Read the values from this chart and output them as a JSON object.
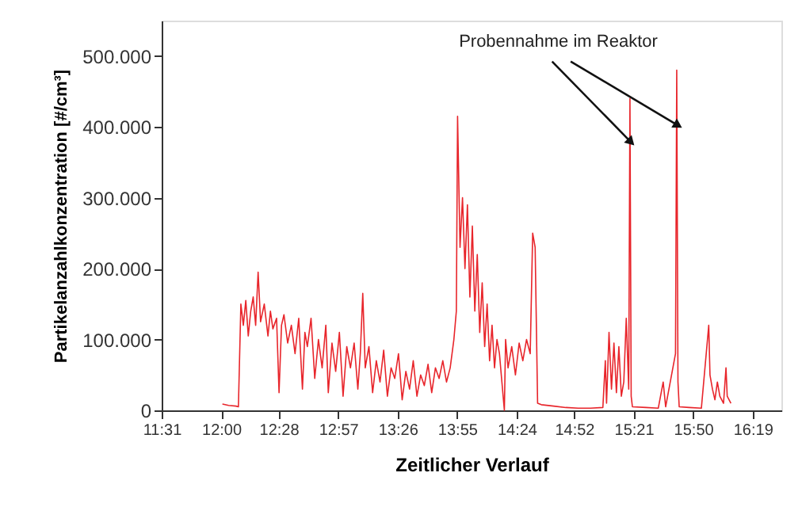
{
  "chart_data": {
    "type": "line",
    "xlabel": "Zeitlicher Verlauf",
    "ylabel": "Partikelanzahlkonzentration [#/cm³]",
    "annotations": [
      {
        "text": "Probennahme im Reaktor",
        "x": 15.32,
        "y": 380000
      }
    ],
    "xlim": [
      11.5167,
      16.55
    ],
    "ylim": [
      0,
      550000
    ],
    "xticks": [
      {
        "value": 11.5167,
        "label": "11:31"
      },
      {
        "value": 12.0,
        "label": "12:00"
      },
      {
        "value": 12.4667,
        "label": "12:28"
      },
      {
        "value": 12.95,
        "label": "12:57"
      },
      {
        "value": 13.4333,
        "label": "13:26"
      },
      {
        "value": 13.9167,
        "label": "13:55"
      },
      {
        "value": 14.4,
        "label": "14:24"
      },
      {
        "value": 14.8667,
        "label": "14:52"
      },
      {
        "value": 15.35,
        "label": "15:21"
      },
      {
        "value": 15.8333,
        "label": "15:50"
      },
      {
        "value": 16.3167,
        "label": "16:19"
      }
    ],
    "yticks": [
      {
        "value": 0,
        "label": "0"
      },
      {
        "value": 100000,
        "label": "100.000"
      },
      {
        "value": 200000,
        "label": "200.000"
      },
      {
        "value": 300000,
        "label": "300.000"
      },
      {
        "value": 400000,
        "label": "400.000"
      },
      {
        "value": 500000,
        "label": "500.000"
      }
    ],
    "grid": false,
    "marker": "none",
    "line_style": "solid",
    "series": [
      {
        "color": "#e8252b",
        "x": [
          12.01,
          12.06,
          12.12,
          12.14,
          12.16,
          12.18,
          12.2,
          12.22,
          12.24,
          12.26,
          12.28,
          12.3,
          12.32,
          12.35,
          12.38,
          12.4,
          12.42,
          12.45,
          12.47,
          12.49,
          12.51,
          12.54,
          12.57,
          12.6,
          12.63,
          12.66,
          12.68,
          12.7,
          12.73,
          12.76,
          12.79,
          12.82,
          12.85,
          12.87,
          12.9,
          12.93,
          12.96,
          12.99,
          13.02,
          13.05,
          13.08,
          13.11,
          13.13,
          13.15,
          13.17,
          13.2,
          13.23,
          13.26,
          13.29,
          13.32,
          13.35,
          13.38,
          13.41,
          13.44,
          13.47,
          13.5,
          13.53,
          13.56,
          13.59,
          13.62,
          13.65,
          13.68,
          13.71,
          13.74,
          13.77,
          13.8,
          13.83,
          13.86,
          13.89,
          13.91,
          13.92,
          13.94,
          13.96,
          13.98,
          14.0,
          14.02,
          14.04,
          14.06,
          14.08,
          14.1,
          14.12,
          14.14,
          14.16,
          14.18,
          14.2,
          14.22,
          14.24,
          14.26,
          14.28,
          14.3,
          14.31,
          14.33,
          14.36,
          14.39,
          14.42,
          14.45,
          14.48,
          14.51,
          14.53,
          14.55,
          14.57,
          14.6,
          14.7,
          14.8,
          14.9,
          15.0,
          15.1,
          15.12,
          15.13,
          15.15,
          15.17,
          15.19,
          15.21,
          15.23,
          15.25,
          15.27,
          15.29,
          15.31,
          15.32,
          15.33,
          15.34,
          15.45,
          15.55,
          15.59,
          15.61,
          15.69,
          15.7,
          15.71,
          15.72,
          15.8,
          15.9,
          15.96,
          15.97,
          15.99,
          16.01,
          16.03,
          16.05,
          16.08,
          16.1,
          16.11,
          16.14
        ],
        "values": [
          9000,
          7000,
          6000,
          5000,
          150000,
          120000,
          155000,
          105000,
          140000,
          160000,
          120000,
          195000,
          125000,
          150000,
          105000,
          140000,
          115000,
          130000,
          25000,
          120000,
          135000,
          95000,
          120000,
          80000,
          130000,
          30000,
          110000,
          90000,
          130000,
          45000,
          100000,
          60000,
          120000,
          25000,
          95000,
          55000,
          110000,
          20000,
          90000,
          60000,
          95000,
          30000,
          80000,
          165000,
          60000,
          90000,
          25000,
          70000,
          40000,
          85000,
          20000,
          60000,
          45000,
          80000,
          15000,
          55000,
          30000,
          70000,
          20000,
          50000,
          35000,
          65000,
          25000,
          60000,
          45000,
          70000,
          40000,
          60000,
          100000,
          140000,
          415000,
          230000,
          300000,
          200000,
          290000,
          160000,
          260000,
          140000,
          220000,
          110000,
          180000,
          90000,
          150000,
          70000,
          120000,
          60000,
          100000,
          80000,
          40000,
          0,
          100000,
          60000,
          90000,
          50000,
          95000,
          70000,
          100000,
          80000,
          250000,
          230000,
          10000,
          8000,
          6000,
          4000,
          3000,
          3000,
          4000,
          70000,
          10000,
          110000,
          30000,
          95000,
          25000,
          90000,
          20000,
          40000,
          130000,
          30000,
          440000,
          20000,
          5000,
          4000,
          3000,
          40000,
          5000,
          80000,
          480000,
          40000,
          5000,
          4000,
          3000,
          120000,
          50000,
          30000,
          15000,
          40000,
          20000,
          10000,
          60000,
          20000,
          10000
        ]
      }
    ]
  }
}
